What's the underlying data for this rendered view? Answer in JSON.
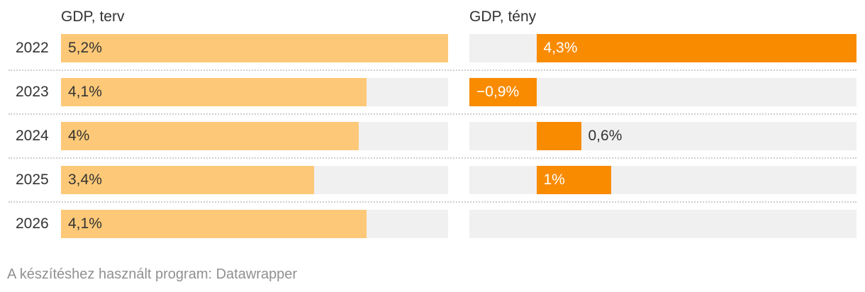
{
  "chart_data": [
    {
      "type": "bar",
      "title": "GDP, terv",
      "categories": [
        "2022",
        "2023",
        "2024",
        "2025",
        "2026"
      ],
      "values": [
        5.2,
        4.1,
        4.0,
        3.4,
        4.1
      ],
      "labels": [
        "5,2%",
        "4,1%",
        "4%",
        "3,4%",
        "4,1%"
      ],
      "xlim": [
        0,
        5.2
      ],
      "color": "#fdc978"
    },
    {
      "type": "bar",
      "title": "GDP, tény",
      "categories": [
        "2022",
        "2023",
        "2024",
        "2025",
        "2026"
      ],
      "values": [
        4.3,
        -0.9,
        0.6,
        1.0,
        null
      ],
      "labels": [
        "4,3%",
        "−0,9%",
        "0,6%",
        "1%",
        ""
      ],
      "xlim": [
        -0.9,
        4.3
      ],
      "color": "#f98b00"
    }
  ],
  "footer": "A készítéshez használt program: Datawrapper",
  "colors": {
    "track": "#f0f0f0",
    "text": "#333333",
    "footer": "#909090"
  }
}
